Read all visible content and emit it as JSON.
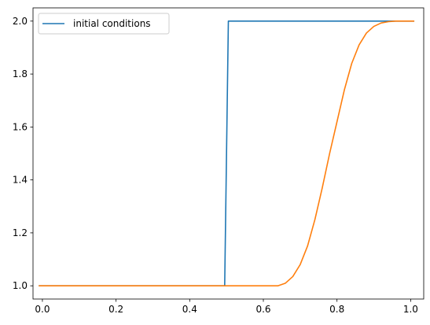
{
  "chart_data": {
    "type": "line",
    "title": "",
    "xlabel": "",
    "ylabel": "",
    "xlim": [
      -0.0255,
      1.0355
    ],
    "ylim": [
      0.95,
      2.05
    ],
    "xticks": [
      0.0,
      0.2,
      0.4,
      0.6,
      0.8,
      1.0
    ],
    "xtick_labels": [
      "0.0",
      "0.2",
      "0.4",
      "0.6",
      "0.8",
      "1.0"
    ],
    "yticks": [
      1.0,
      1.2,
      1.4,
      1.6,
      1.8,
      2.0
    ],
    "ytick_labels": [
      "1.0",
      "1.2",
      "1.4",
      "1.6",
      "1.8",
      "2.0"
    ],
    "grid": false,
    "legend_position": "top-left",
    "series": [
      {
        "name": "initial conditions",
        "color": "#1f77b4",
        "x": [
          -0.01,
          0.495,
          0.505,
          1.01
        ],
        "y": [
          1.0,
          1.0,
          2.0,
          2.0
        ]
      },
      {
        "color": "#ff7f0e",
        "x": [
          -0.01,
          0.6,
          0.64,
          0.66,
          0.68,
          0.7,
          0.72,
          0.74,
          0.76,
          0.78,
          0.8,
          0.82,
          0.84,
          0.86,
          0.88,
          0.9,
          0.92,
          0.94,
          0.96,
          0.98,
          1.01
        ],
        "y": [
          1.0,
          1.0,
          1.0,
          1.01,
          1.035,
          1.08,
          1.15,
          1.25,
          1.37,
          1.5,
          1.62,
          1.74,
          1.84,
          1.91,
          1.955,
          1.98,
          1.993,
          1.998,
          2.0,
          2.0,
          2.0
        ]
      }
    ]
  }
}
